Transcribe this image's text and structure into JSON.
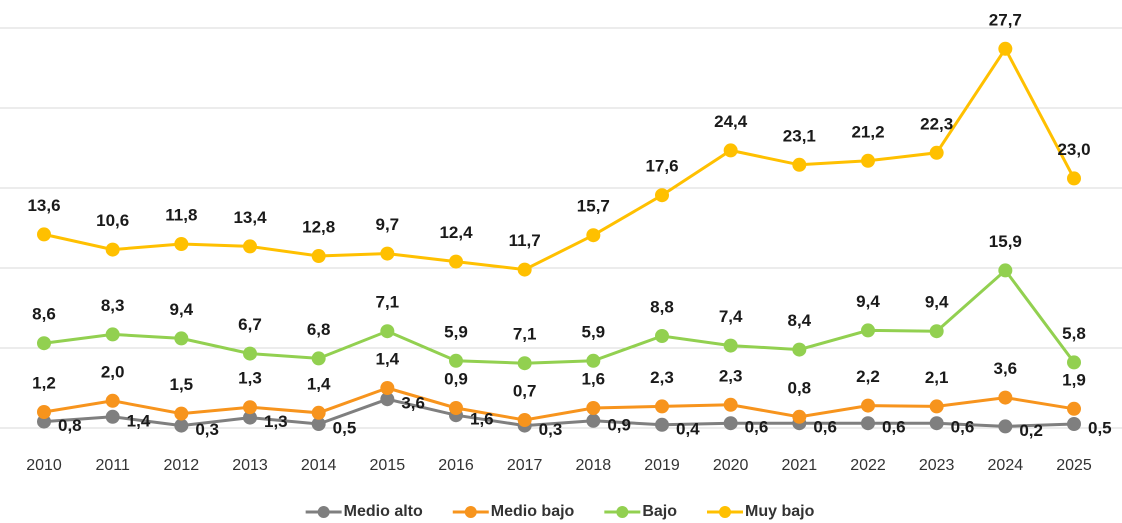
{
  "chart_data": {
    "type": "line",
    "stacked": true,
    "grid": true,
    "legend": "bottom",
    "categories": [
      "2010",
      "2011",
      "2012",
      "2013",
      "2014",
      "2015",
      "2016",
      "2017",
      "2018",
      "2019",
      "2020",
      "2021",
      "2022",
      "2023",
      "2024",
      "2025"
    ],
    "ylim": [
      0,
      50
    ],
    "yticks": [
      0,
      10,
      20,
      30,
      40,
      50
    ],
    "series": [
      {
        "name": "Medio alto",
        "color": "#7f7f7f",
        "values": [
          0.8,
          1.4,
          0.3,
          1.3,
          0.5,
          3.6,
          1.6,
          0.3,
          0.9,
          0.4,
          0.6,
          0.6,
          0.6,
          0.6,
          0.2,
          0.5
        ],
        "value_labels": [
          "0,8",
          "1,4",
          "0,3",
          "1,3",
          "0,5",
          "3,6",
          "1,6",
          "0,3",
          "0,9",
          "0,4",
          "0,6",
          "0,6",
          "0,6",
          "0,6",
          "0,2",
          "0,5"
        ]
      },
      {
        "name": "Medio bajo",
        "color": "#f7941d",
        "values": [
          1.2,
          2.0,
          1.5,
          1.3,
          1.4,
          1.4,
          0.9,
          0.7,
          1.6,
          2.3,
          2.3,
          0.8,
          2.2,
          2.1,
          3.6,
          1.9
        ],
        "value_labels": [
          "1,2",
          "2,0",
          "1,5",
          "1,3",
          "1,4",
          "1,4",
          "0,9",
          "0,7",
          "1,6",
          "2,3",
          "2,3",
          "0,8",
          "2,2",
          "2,1",
          "3,6",
          "1,9"
        ]
      },
      {
        "name": "Bajo",
        "color": "#92d050",
        "values": [
          8.6,
          8.3,
          9.4,
          6.7,
          6.8,
          7.1,
          5.9,
          7.1,
          5.9,
          8.8,
          7.4,
          8.4,
          9.4,
          9.4,
          15.9,
          5.8
        ],
        "value_labels": [
          "8,6",
          "8,3",
          "9,4",
          "6,7",
          "6,8",
          "7,1",
          "5,9",
          "7,1",
          "5,9",
          "8,8",
          "7,4",
          "8,4",
          "9,4",
          "9,4",
          "15,9",
          "5,8"
        ]
      },
      {
        "name": "Muy bajo",
        "color": "#ffc000",
        "values": [
          13.6,
          10.6,
          11.8,
          13.4,
          12.8,
          9.7,
          12.4,
          11.7,
          15.7,
          17.6,
          24.4,
          23.1,
          21.2,
          22.3,
          27.7,
          23.0
        ],
        "value_labels": [
          "13,6",
          "10,6",
          "11,8",
          "13,4",
          "12,8",
          "9,7",
          "12,4",
          "11,7",
          "15,7",
          "17,6",
          "24,4",
          "23,1",
          "21,2",
          "22,3",
          "27,7",
          "23,0"
        ]
      }
    ]
  }
}
